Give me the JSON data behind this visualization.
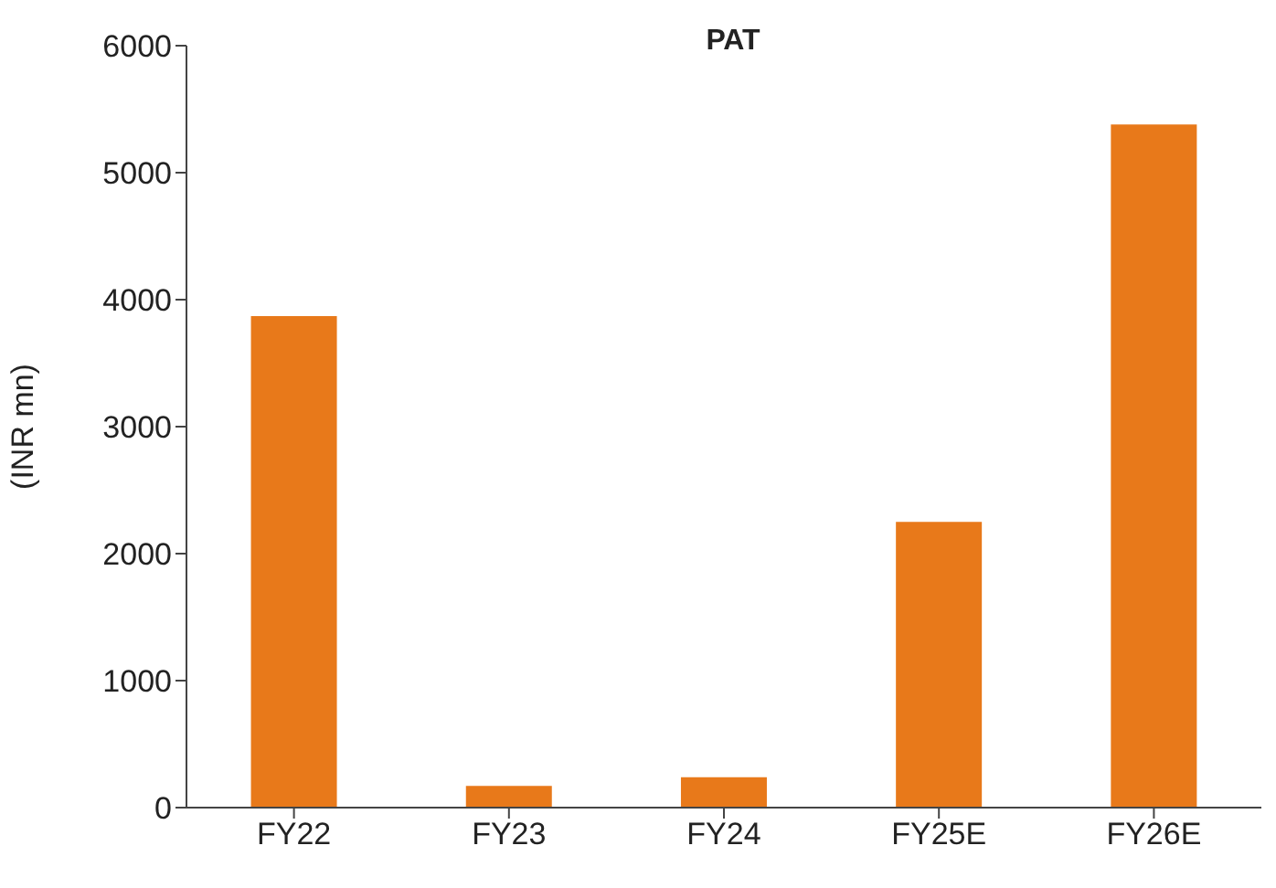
{
  "chart_data": {
    "type": "bar",
    "title": "PAT",
    "ylabel": "(INR mn)",
    "categories": [
      "FY22",
      "FY23",
      "FY24",
      "FY25E",
      "FY26E"
    ],
    "values": [
      3870,
      170,
      240,
      2250,
      5380
    ],
    "color": "#e8791a",
    "ylim": [
      0,
      6000
    ],
    "yticks": [
      0,
      1000,
      2000,
      3000,
      4000,
      5000,
      6000
    ],
    "grid": false
  }
}
